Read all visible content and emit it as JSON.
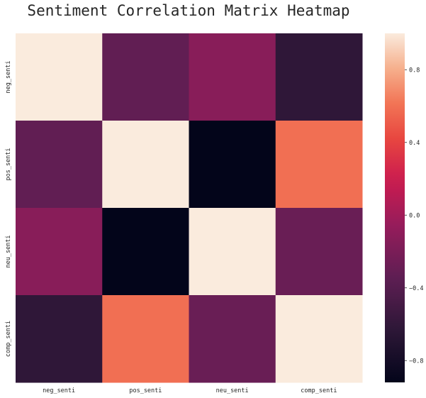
{
  "chart_data": {
    "type": "heatmap",
    "title": "Sentiment Correlation Matrix Heatmap",
    "xlabel": "",
    "ylabel": "",
    "x_categories": [
      "neg_senti",
      "pos_senti",
      "neu_senti",
      "comp_senti"
    ],
    "y_categories": [
      "neg_senti",
      "pos_senti",
      "neu_senti",
      "comp_senti"
    ],
    "values": [
      [
        1.0,
        -0.33,
        -0.13,
        -0.62
      ],
      [
        -0.33,
        1.0,
        -0.92,
        0.59
      ],
      [
        -0.13,
        -0.92,
        1.0,
        -0.29
      ],
      [
        -0.62,
        0.59,
        -0.29,
        1.0
      ]
    ],
    "colorbar": {
      "range": [
        -0.92,
        1.0
      ],
      "ticks": [
        -0.8,
        -0.4,
        0.0,
        0.4,
        0.8
      ],
      "tick_labels": [
        "−0.8",
        "−0.4",
        "0.0",
        "0.4",
        "0.8"
      ]
    },
    "colormap": "rocket",
    "grid": false
  }
}
